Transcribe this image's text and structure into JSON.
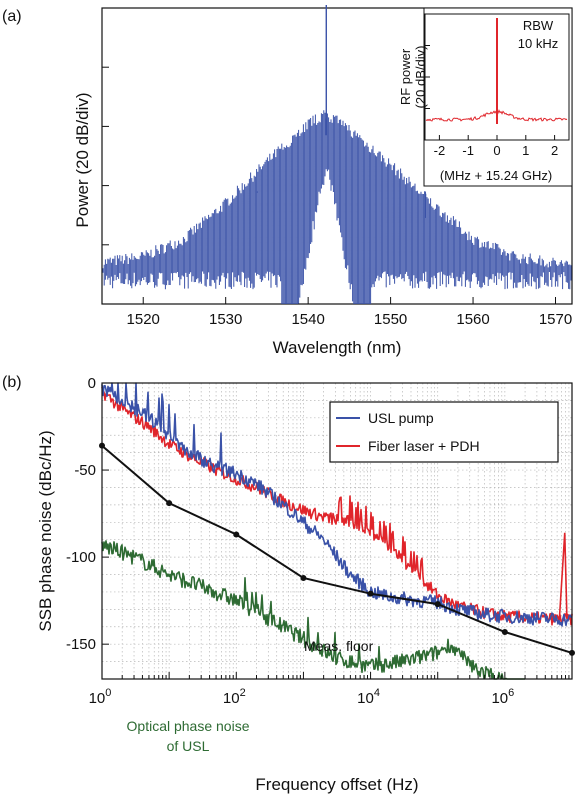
{
  "panel_a": {
    "label": "(a)",
    "ylabel": "Power (20 dB/div)",
    "xlabel": "Wavelength (nm)",
    "inset": {
      "ylabel_line1": "RF power",
      "ylabel_line2": "(20 dB/div)",
      "xlabel": "(MHz + 15.24 GHz)",
      "rbw_line1": "RBW",
      "rbw_line2": "10 kHz"
    }
  },
  "panel_b": {
    "label": "(b)",
    "ylabel": "SSB phase noise (dBc/Hz)",
    "xlabel": "Frequency offset (Hz)",
    "annotations": {
      "meas_floor": "Meas. floor",
      "optical_line1": "Optical phase noise",
      "optical_line2": "of USL"
    }
  },
  "colors": {
    "blue": "#3a52a8",
    "red": "#e0252b",
    "black": "#111111",
    "green": "#2e6b33",
    "grid": "#b8b8b8"
  },
  "chart_data": [
    {
      "type": "line",
      "title": "",
      "xlabel": "Wavelength (nm)",
      "ylabel": "Power (20 dB/div)",
      "xlim": [
        1515,
        1572
      ],
      "xticks": [
        "1520",
        "1530",
        "1540",
        "1550",
        "1560",
        "1570"
      ],
      "ydivisions": 5,
      "series": [
        {
          "envelope_points": [
            [
              1515,
              -88
            ],
            [
              1520,
              -86
            ],
            [
              1525,
              -80
            ],
            [
              1530,
              -68
            ],
            [
              1535,
              -54
            ],
            [
              1540,
              -41
            ],
            [
              1542.2,
              -38
            ],
            [
              1545,
              -43
            ],
            [
              1550,
              -55
            ],
            [
              1555,
              -68
            ],
            [
              1560,
              -80
            ],
            [
              1565,
              -86
            ],
            [
              1572,
              -89
            ]
          ],
          "noise_floor": -95,
          "spikes": [
            [
              1542.2,
              1
            ],
            [
              1533.8,
              -62
            ],
            [
              1554.2,
              -62
            ]
          ]
        }
      ]
    },
    {
      "type": "line",
      "title": "",
      "xlabel": "(MHz + 15.24 GHz)",
      "ylabel": "RF power (20 dB/div)",
      "xlim": [
        -2.5,
        2.5
      ],
      "xticks": [
        "-2",
        "-1",
        "0",
        "1",
        "2"
      ],
      "series": [
        {
          "peak_at": 0,
          "color": "red"
        }
      ]
    },
    {
      "type": "line",
      "title": "",
      "xlabel": "Frequency offset (Hz)",
      "ylabel": "SSB phase noise (dBc/Hz)",
      "xscale": "log",
      "xlim": [
        1,
        10000000
      ],
      "ylim": [
        -170,
        0
      ],
      "xticks": [
        "10^0",
        "10^2",
        "10^4",
        "10^6"
      ],
      "yticks": [
        "0",
        "-50",
        "-100",
        "-150"
      ],
      "legend": "top-right",
      "grid": true,
      "series": [
        {
          "name": "USL pump",
          "points": [
            [
              1,
              -3
            ],
            [
              2,
              -10
            ],
            [
              5,
              -20
            ],
            [
              10,
              -30
            ],
            [
              20,
              -40
            ],
            [
              50,
              -48
            ],
            [
              100,
              -52
            ],
            [
              200,
              -58
            ],
            [
              500,
              -70
            ],
            [
              1000,
              -80
            ],
            [
              2000,
              -90
            ],
            [
              5000,
              -110
            ],
            [
              10000,
              -120
            ],
            [
              20000,
              -123
            ],
            [
              50000,
              -125
            ],
            [
              100000,
              -126
            ],
            [
              200000,
              -130
            ],
            [
              500000,
              -133
            ],
            [
              1000000,
              -134
            ],
            [
              3000000,
              -135
            ],
            [
              10000000,
              -136
            ]
          ]
        },
        {
          "name": "Fiber laser + PDH",
          "points": [
            [
              1,
              -5
            ],
            [
              2,
              -15
            ],
            [
              5,
              -25
            ],
            [
              10,
              -35
            ],
            [
              20,
              -42
            ],
            [
              50,
              -50
            ],
            [
              100,
              -55
            ],
            [
              200,
              -60
            ],
            [
              500,
              -68
            ],
            [
              1000,
              -73
            ],
            [
              2000,
              -77
            ],
            [
              5000,
              -80
            ],
            [
              10000,
              -85
            ],
            [
              20000,
              -95
            ],
            [
              50000,
              -110
            ],
            [
              100000,
              -122
            ],
            [
              200000,
              -128
            ],
            [
              500000,
              -132
            ],
            [
              1000000,
              -134
            ],
            [
              3000000,
              -135
            ],
            [
              8000000,
              -86
            ],
            [
              10000000,
              -136
            ]
          ]
        },
        {
          "name": "Meas. floor",
          "points": [
            [
              1,
              -36
            ],
            [
              10,
              -69
            ],
            [
              100,
              -87
            ],
            [
              1000,
              -112
            ],
            [
              10000,
              -121
            ],
            [
              100000,
              -127
            ],
            [
              1000000,
              -143
            ],
            [
              10000000,
              -155
            ]
          ]
        },
        {
          "name": "Optical phase noise of USL",
          "points": [
            [
              1,
              -93
            ],
            [
              3,
              -100
            ],
            [
              10,
              -110
            ],
            [
              30,
              -117
            ],
            [
              100,
              -125
            ],
            [
              300,
              -135
            ],
            [
              1000,
              -147
            ],
            [
              3000,
              -158
            ],
            [
              10000,
              -163
            ],
            [
              30000,
              -160
            ],
            [
              100000,
              -155
            ],
            [
              150000,
              -150
            ],
            [
              300000,
              -162
            ],
            [
              1000000,
              -172
            ],
            [
              2000000,
              -175
            ]
          ]
        }
      ]
    }
  ]
}
